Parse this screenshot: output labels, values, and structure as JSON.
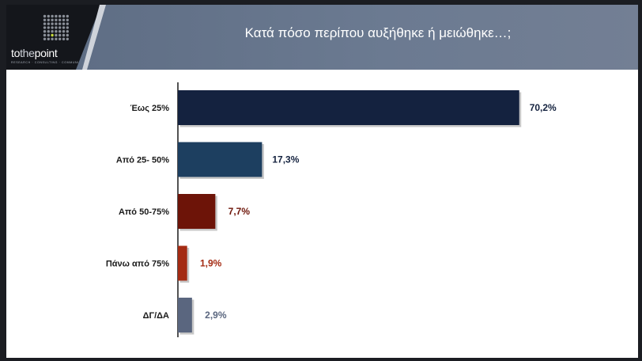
{
  "slide": {
    "title": "Κατά πόσο περίπου αυξήθηκε ή μειώθηκε…;"
  },
  "logo": {
    "word_a": "to",
    "word_b": "the",
    "word_c": "point",
    "tagline": "RESEARCH · CONSULTING · COMMUNICATION"
  },
  "colors": {
    "header": "#5f6e86",
    "logo_bg": "#14161b",
    "accent_dot": "#c8dc3c"
  },
  "chart_data": {
    "type": "bar",
    "orientation": "horizontal",
    "categories": [
      "Έως 25%",
      "Από 25- 50%",
      "Από 50-75%",
      "Πάνω από 75%",
      "ΔΓ/ΔΑ"
    ],
    "values": [
      70.2,
      17.3,
      7.7,
      1.9,
      2.9
    ],
    "value_labels": [
      "70,2%",
      "17,3%",
      "7,7%",
      "1,9%",
      "2,9%"
    ],
    "colors": [
      "#14223f",
      "#1d3f60",
      "#6d1408",
      "#a42b13",
      "#5a667f"
    ],
    "label_colors": [
      "#14223f",
      "#14223f",
      "#6d1408",
      "#a42b13",
      "#5a667f"
    ],
    "xlim": [
      0,
      100
    ],
    "grid": false,
    "legend": "none"
  }
}
